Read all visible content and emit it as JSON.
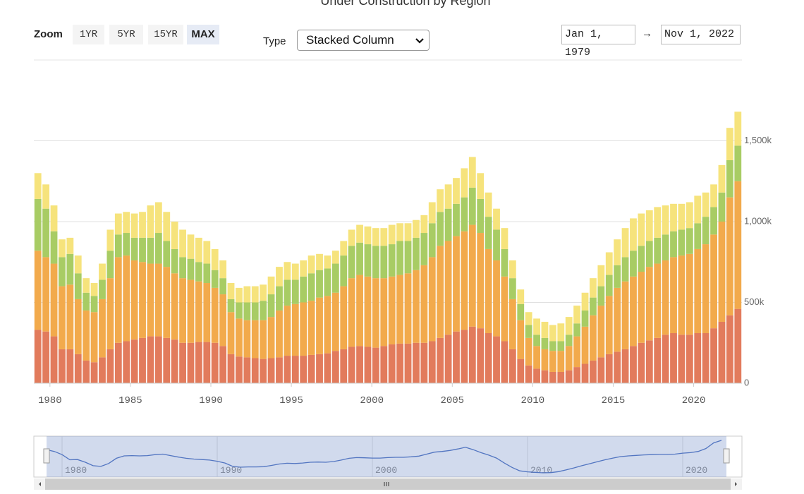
{
  "controls": {
    "zoom_label": "Zoom",
    "zoom_buttons": [
      "1YR",
      "5YR",
      "15YR",
      "MAX"
    ],
    "type_label": "Type",
    "type_value": "Stacked Column",
    "date_from": "Jan 1, 1979",
    "range_separator": "→",
    "date_to": "Nov 1, 2022"
  },
  "chart_data": {
    "type": "stacked-bar",
    "title": "Under Construction by Region",
    "x": [
      1979,
      1979.5,
      1980,
      1980.5,
      1981,
      1981.5,
      1982,
      1982.5,
      1983,
      1983.5,
      1984,
      1984.5,
      1985,
      1985.5,
      1986,
      1986.5,
      1987,
      1987.5,
      1988,
      1988.5,
      1989,
      1989.5,
      1990,
      1990.5,
      1991,
      1991.5,
      1992,
      1992.5,
      1993,
      1993.5,
      1994,
      1994.5,
      1995,
      1995.5,
      1996,
      1996.5,
      1997,
      1997.5,
      1998,
      1998.5,
      1999,
      1999.5,
      2000,
      2000.5,
      2001,
      2001.5,
      2002,
      2002.5,
      2003,
      2003.5,
      2004,
      2004.5,
      2005,
      2005.5,
      2006,
      2006.5,
      2007,
      2007.5,
      2008,
      2008.5,
      2009,
      2009.5,
      2010,
      2010.5,
      2011,
      2011.5,
      2012,
      2012.5,
      2013,
      2013.5,
      2014,
      2014.5,
      2015,
      2015.5,
      2016,
      2016.5,
      2017,
      2017.5,
      2018,
      2018.5,
      2019,
      2019.5,
      2020,
      2020.5,
      2021,
      2021.5,
      2022,
      2022.5
    ],
    "series": [
      {
        "color": "#e27b5c",
        "values": [
          330,
          320,
          290,
          210,
          210,
          180,
          140,
          130,
          160,
          210,
          250,
          260,
          270,
          280,
          290,
          290,
          280,
          270,
          250,
          250,
          255,
          255,
          250,
          230,
          180,
          165,
          160,
          155,
          150,
          155,
          160,
          170,
          170,
          170,
          175,
          180,
          185,
          200,
          210,
          225,
          230,
          225,
          220,
          230,
          240,
          245,
          245,
          250,
          250,
          260,
          280,
          300,
          320,
          330,
          350,
          340,
          310,
          290,
          260,
          210,
          150,
          110,
          90,
          80,
          70,
          70,
          80,
          100,
          120,
          140,
          160,
          180,
          195,
          210,
          230,
          250,
          265,
          280,
          300,
          310,
          300,
          300,
          310,
          310,
          340,
          380,
          420,
          460
        ]
      },
      {
        "color": "#f2aa4c",
        "values": [
          490,
          460,
          450,
          390,
          400,
          340,
          310,
          310,
          360,
          440,
          530,
          530,
          490,
          470,
          450,
          450,
          440,
          410,
          400,
          390,
          375,
          365,
          340,
          320,
          260,
          235,
          230,
          235,
          240,
          255,
          290,
          310,
          320,
          330,
          335,
          350,
          355,
          360,
          390,
          425,
          440,
          435,
          430,
          420,
          420,
          425,
          435,
          450,
          480,
          520,
          570,
          580,
          590,
          610,
          630,
          590,
          520,
          470,
          400,
          310,
          240,
          170,
          140,
          130,
          130,
          130,
          150,
          190,
          230,
          280,
          320,
          360,
          395,
          420,
          430,
          440,
          455,
          460,
          460,
          470,
          490,
          500,
          520,
          550,
          580,
          620,
          730,
          790
        ]
      },
      {
        "color": "#a8cc64",
        "values": [
          320,
          300,
          200,
          180,
          190,
          160,
          110,
          100,
          120,
          170,
          140,
          140,
          140,
          150,
          160,
          190,
          160,
          150,
          130,
          130,
          120,
          120,
          110,
          100,
          80,
          100,
          110,
          110,
          120,
          140,
          150,
          160,
          150,
          160,
          170,
          170,
          170,
          180,
          190,
          200,
          200,
          200,
          200,
          200,
          200,
          210,
          200,
          200,
          200,
          210,
          210,
          200,
          200,
          210,
          230,
          210,
          200,
          190,
          170,
          130,
          100,
          80,
          70,
          70,
          60,
          60,
          70,
          80,
          100,
          110,
          120,
          130,
          140,
          150,
          160,
          160,
          160,
          160,
          160,
          160,
          160,
          160,
          160,
          170,
          170,
          180,
          230,
          220
        ]
      },
      {
        "color": "#f6e37c",
        "values": [
          160,
          150,
          160,
          110,
          100,
          110,
          90,
          80,
          100,
          130,
          130,
          130,
          150,
          160,
          200,
          190,
          180,
          170,
          170,
          150,
          150,
          140,
          130,
          110,
          100,
          90,
          100,
          100,
          100,
          110,
          120,
          110,
          100,
          100,
          110,
          100,
          80,
          80,
          90,
          100,
          110,
          110,
          110,
          110,
          120,
          110,
          110,
          110,
          110,
          130,
          140,
          150,
          160,
          180,
          190,
          160,
          150,
          130,
          130,
          110,
          90,
          80,
          100,
          100,
          100,
          110,
          110,
          110,
          110,
          120,
          130,
          140,
          160,
          180,
          200,
          200,
          190,
          190,
          180,
          170,
          160,
          160,
          170,
          150,
          140,
          170,
          200,
          210
        ]
      }
    ],
    "xlim": [
      1979,
      2023
    ],
    "xticks": [
      1980,
      1985,
      1990,
      1995,
      2000,
      2005,
      2010,
      2015,
      2020
    ],
    "ylim": [
      0,
      2000
    ],
    "yticks": [
      0,
      {
        "value": 500,
        "label": "500k"
      },
      {
        "value": 1000,
        "label": "1,000k"
      },
      {
        "value": 1500,
        "label": "1,500k"
      }
    ],
    "grid": true,
    "navigator": {
      "xticks": [
        1980,
        1990,
        2000,
        2010,
        2020
      ]
    }
  }
}
